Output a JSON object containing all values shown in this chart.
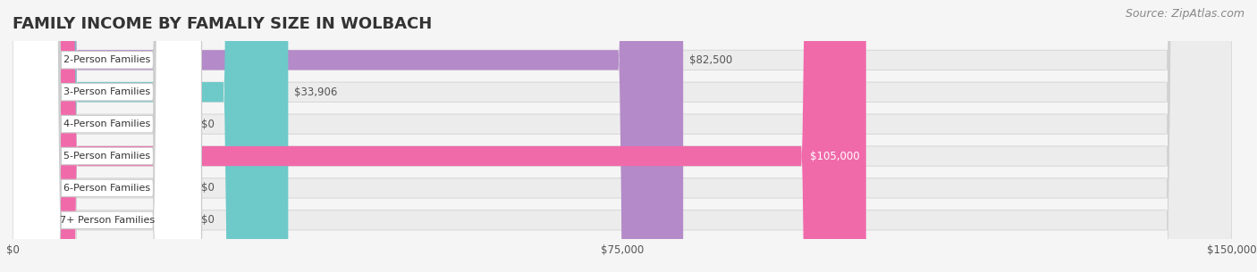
{
  "title": "FAMILY INCOME BY FAMALIY SIZE IN WOLBACH",
  "source": "Source: ZipAtlas.com",
  "categories": [
    "2-Person Families",
    "3-Person Families",
    "4-Person Families",
    "5-Person Families",
    "6-Person Families",
    "7+ Person Families"
  ],
  "values": [
    82500,
    33906,
    0,
    105000,
    0,
    0
  ],
  "bar_colors": [
    "#b48ac8",
    "#6ec9c9",
    "#a8b4e8",
    "#f06aaa",
    "#f5c89a",
    "#f4a8a8"
  ],
  "label_colors": [
    "#555555",
    "#555555",
    "#555555",
    "#ffffff",
    "#555555",
    "#555555"
  ],
  "xlim": [
    0,
    150000
  ],
  "xticks": [
    0,
    75000,
    150000
  ],
  "xtick_labels": [
    "$0",
    "$75,000",
    "$150,000"
  ],
  "title_fontsize": 13,
  "source_fontsize": 9,
  "bar_height": 0.62,
  "background_color": "#f5f5f5",
  "bar_bg_color": "#e8e8e8"
}
